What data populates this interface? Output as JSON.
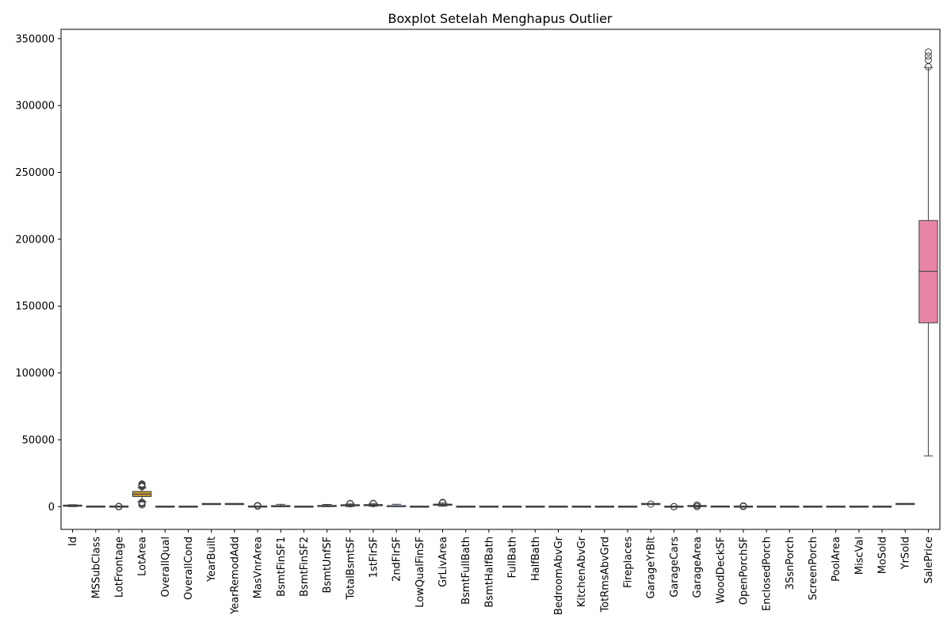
{
  "chart_data": {
    "type": "boxplot",
    "title": "Boxplot Setelah Menghapus Outlier",
    "xlabel": "",
    "ylabel": "",
    "ylim": [
      -17000,
      357000
    ],
    "y_ticks": [
      0,
      50000,
      100000,
      150000,
      200000,
      250000,
      300000,
      350000
    ],
    "y_tick_labels": [
      "0",
      "50000",
      "100000",
      "150000",
      "200000",
      "250000",
      "300000",
      "350000"
    ],
    "grid": false,
    "legend": "none",
    "categories": [
      "Id",
      "MSSubClass",
      "LotFrontage",
      "LotArea",
      "OverallQual",
      "OverallCond",
      "YearBuilt",
      "YearRemodAdd",
      "MasVnrArea",
      "BsmtFinSF1",
      "BsmtFinSF2",
      "BsmtUnfSF",
      "TotalBsmtSF",
      "1stFlrSF",
      "2ndFlrSF",
      "LowQualFinSF",
      "GrLivArea",
      "BsmtFullBath",
      "BsmtHalfBath",
      "FullBath",
      "HalfBath",
      "BedroomAbvGr",
      "KitchenAbvGr",
      "TotRmsAbvGrd",
      "Fireplaces",
      "GarageYrBlt",
      "GarageCars",
      "GarageArea",
      "WoodDeckSF",
      "OpenPorchSF",
      "EnclosedPorch",
      "3SsnPorch",
      "ScreenPorch",
      "PoolArea",
      "MiscVal",
      "MoSold",
      "YrSold",
      "SalePrice"
    ],
    "boxes": [
      {
        "min": 1,
        "q1": 370,
        "median": 730,
        "q3": 1095,
        "max": 1460,
        "outliers": [],
        "color": "#f77189"
      },
      {
        "min": 20,
        "q1": 20,
        "median": 50,
        "q3": 70,
        "max": 145,
        "outliers": [],
        "color": "#f7754f"
      },
      {
        "min": 31,
        "q1": 60,
        "median": 69,
        "q3": 79,
        "max": 107,
        "outliers": [
          21,
          24,
          30,
          110,
          115,
          120
        ],
        "color": "#dc8932"
      },
      {
        "min": 3900,
        "q1": 7550,
        "median": 9400,
        "q3": 11400,
        "max": 14000,
        "outliers": [
          1300,
          2200,
          2800,
          3200,
          15000,
          15500,
          16000,
          16500,
          17000
        ],
        "color": "#c39532"
      },
      {
        "min": 2,
        "q1": 5,
        "median": 6,
        "q3": 7,
        "max": 10,
        "outliers": [],
        "color": "#ae9d31"
      },
      {
        "min": 3,
        "q1": 5,
        "median": 5,
        "q3": 6,
        "max": 8,
        "outliers": [],
        "color": "#97a431"
      },
      {
        "min": 1885,
        "q1": 1954,
        "median": 1973,
        "q3": 2000,
        "max": 2010,
        "outliers": [],
        "color": "#77ab31"
      },
      {
        "min": 1950,
        "q1": 1967,
        "median": 1994,
        "q3": 2004,
        "max": 2010,
        "outliers": [],
        "color": "#33b039"
      },
      {
        "min": 0,
        "q1": 0,
        "median": 0,
        "q3": 160,
        "max": 400,
        "outliers": [
          450,
          500,
          550,
          600,
          650,
          700,
          750,
          800
        ],
        "color": "#34ae6f"
      },
      {
        "min": 0,
        "q1": 0,
        "median": 380,
        "q3": 710,
        "max": 1770,
        "outliers": [],
        "color": "#35ac8b"
      },
      {
        "min": 0,
        "q1": 0,
        "median": 0,
        "q3": 0,
        "max": 0,
        "outliers": [],
        "color": "#36ab9d"
      },
      {
        "min": 0,
        "q1": 220,
        "median": 480,
        "q3": 810,
        "max": 1680,
        "outliers": [],
        "color": "#37aaac"
      },
      {
        "min": 105,
        "q1": 800,
        "median": 990,
        "q3": 1300,
        "max": 2030,
        "outliers": [
          2100,
          2200,
          2400
        ],
        "color": "#38a9bb"
      },
      {
        "min": 334,
        "q1": 880,
        "median": 1090,
        "q3": 1390,
        "max": 2150,
        "outliers": [
          2200,
          2300,
          2500
        ],
        "color": "#3aa6dc"
      },
      {
        "min": 0,
        "q1": 0,
        "median": 0,
        "q3": 730,
        "max": 1800,
        "outliers": [],
        "color": "#6e9bf4"
      },
      {
        "min": 0,
        "q1": 0,
        "median": 0,
        "q3": 0,
        "max": 0,
        "outliers": [],
        "color": "#9b8ff5"
      },
      {
        "min": 334,
        "q1": 1130,
        "median": 1460,
        "q3": 1780,
        "max": 2730,
        "outliers": [
          2800,
          2900,
          3000,
          3200
        ],
        "color": "#c281f4"
      },
      {
        "min": 0,
        "q1": 0,
        "median": 0,
        "q3": 1,
        "max": 2,
        "outliers": [],
        "color": "#e46cf4"
      },
      {
        "min": 0,
        "q1": 0,
        "median": 0,
        "q3": 0,
        "max": 0,
        "outliers": [],
        "color": "#f565cc"
      },
      {
        "min": 0,
        "q1": 1,
        "median": 2,
        "q3": 2,
        "max": 3,
        "outliers": [],
        "color": "#f66bad"
      },
      {
        "min": 0,
        "q1": 0,
        "median": 0,
        "q3": 1,
        "max": 2,
        "outliers": [],
        "color": "#f77189"
      },
      {
        "min": 1,
        "q1": 2,
        "median": 3,
        "q3": 3,
        "max": 4,
        "outliers": [],
        "color": "#f7754f"
      },
      {
        "min": 1,
        "q1": 1,
        "median": 1,
        "q3": 1,
        "max": 1,
        "outliers": [],
        "color": "#dc8932"
      },
      {
        "min": 3,
        "q1": 5,
        "median": 6,
        "q3": 7,
        "max": 10,
        "outliers": [],
        "color": "#c39532"
      },
      {
        "min": 0,
        "q1": 0,
        "median": 1,
        "q3": 1,
        "max": 2,
        "outliers": [],
        "color": "#ae9d31"
      },
      {
        "min": 1900,
        "q1": 1961,
        "median": 1980,
        "q3": 2002,
        "max": 2010,
        "outliers": [
          1900
        ],
        "color": "#97a431"
      },
      {
        "min": 1,
        "q1": 1,
        "median": 2,
        "q3": 2,
        "max": 3,
        "outliers": [
          0,
          4
        ],
        "color": "#77ab31"
      },
      {
        "min": 0,
        "q1": 334,
        "median": 480,
        "q3": 576,
        "max": 938,
        "outliers": [
          0,
          1000,
          1100,
          1200
        ],
        "color": "#33b039"
      },
      {
        "min": 0,
        "q1": 0,
        "median": 0,
        "q3": 168,
        "max": 420,
        "outliers": [],
        "color": "#34ae6f"
      },
      {
        "min": 0,
        "q1": 0,
        "median": 25,
        "q3": 68,
        "max": 170,
        "outliers": [
          200,
          250,
          300,
          350,
          400,
          450,
          500,
          550
        ],
        "color": "#35ac8b"
      },
      {
        "min": 0,
        "q1": 0,
        "median": 0,
        "q3": 0,
        "max": 0,
        "outliers": [],
        "color": "#36ab9d"
      },
      {
        "min": 0,
        "q1": 0,
        "median": 0,
        "q3": 0,
        "max": 0,
        "outliers": [],
        "color": "#37aaac"
      },
      {
        "min": 0,
        "q1": 0,
        "median": 0,
        "q3": 0,
        "max": 0,
        "outliers": [],
        "color": "#38a9bb"
      },
      {
        "min": 0,
        "q1": 0,
        "median": 0,
        "q3": 0,
        "max": 0,
        "outliers": [],
        "color": "#3aa6dc"
      },
      {
        "min": 0,
        "q1": 0,
        "median": 0,
        "q3": 0,
        "max": 0,
        "outliers": [],
        "color": "#6e9bf4"
      },
      {
        "min": 1,
        "q1": 5,
        "median": 6,
        "q3": 8,
        "max": 12,
        "outliers": [],
        "color": "#9b8ff5"
      },
      {
        "min": 2006,
        "q1": 2007,
        "median": 2008,
        "q3": 2009,
        "max": 2010,
        "outliers": [],
        "color": "#c281f4"
      },
      {
        "min": 38000,
        "q1": 137500,
        "median": 176000,
        "q3": 214000,
        "max": 328500,
        "outliers": [
          329000,
          334000,
          337000,
          340000
        ],
        "color": "#e884a6"
      }
    ]
  }
}
